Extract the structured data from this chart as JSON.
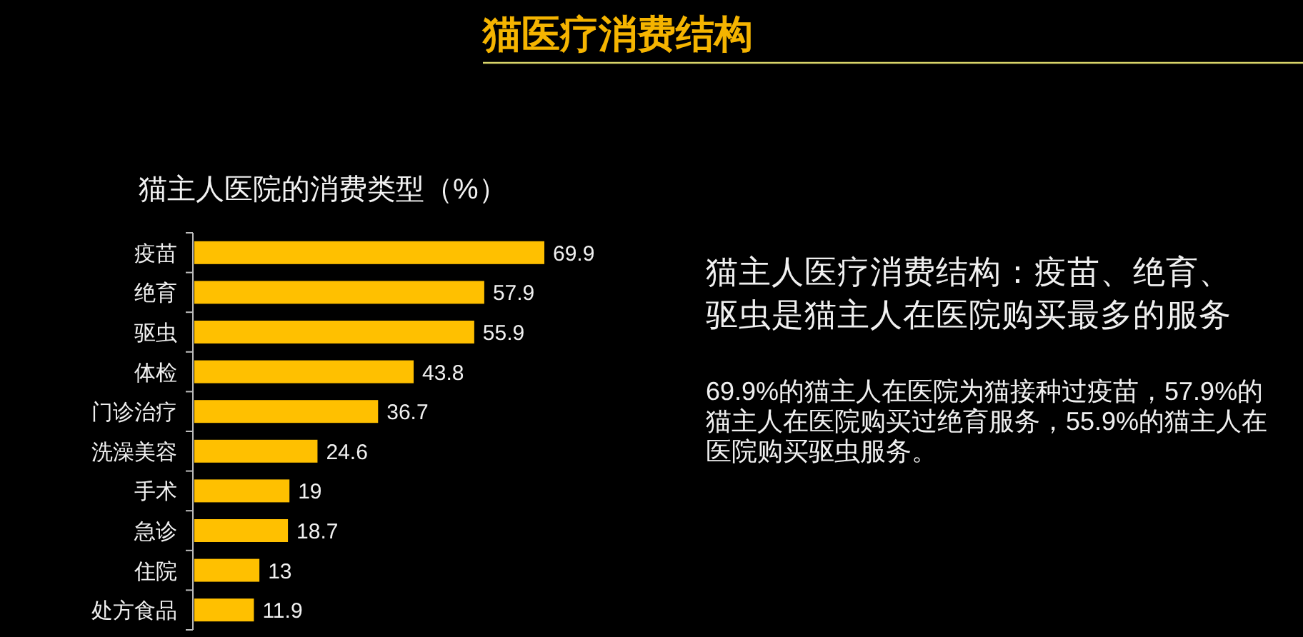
{
  "chart_data": {
    "type": "bar",
    "orientation": "horizontal",
    "title": "猫医疗消费结构",
    "subtitle": "猫主人医院的消费类型（%）",
    "categories": [
      "疫苗",
      "绝育",
      "驱虫",
      "体检",
      "门诊治疗",
      "洗澡美容",
      "手术",
      "急诊",
      "住院",
      "处方食品"
    ],
    "values": [
      69.9,
      57.9,
      55.9,
      43.8,
      36.7,
      24.6,
      19,
      18.7,
      13,
      11.9
    ],
    "color": "#ffc000",
    "data_labels": true,
    "tick_labels": "y",
    "annotations": [
      "猫主人医疗消费结构：疫苗、绝育、驱虫是猫主人在医院购买最多的服务",
      "69.9%的猫主人在医院为猫接种过疫苗，57.9%的猫主人在医院购买过绝育服务，55.9%的猫主人在医院购买驱虫服务。"
    ]
  }
}
